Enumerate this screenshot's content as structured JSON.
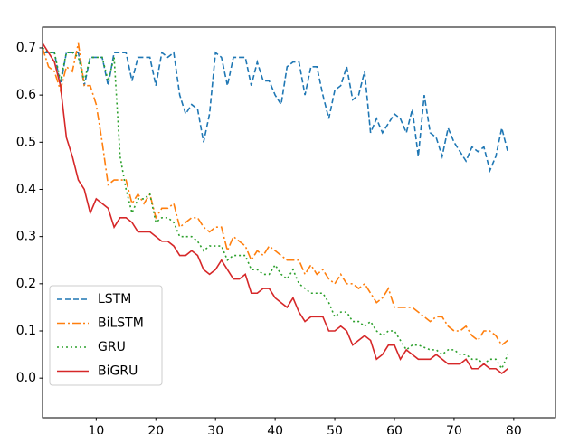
{
  "chart_data": {
    "type": "line",
    "x": [
      1,
      2,
      3,
      4,
      5,
      6,
      7,
      8,
      9,
      10,
      11,
      12,
      13,
      14,
      15,
      16,
      17,
      18,
      19,
      20,
      21,
      22,
      23,
      24,
      25,
      26,
      27,
      28,
      29,
      30,
      31,
      32,
      33,
      34,
      35,
      36,
      37,
      38,
      39,
      40,
      41,
      42,
      43,
      44,
      45,
      46,
      47,
      48,
      49,
      50,
      51,
      52,
      53,
      54,
      55,
      56,
      57,
      58,
      59,
      60,
      61,
      62,
      63,
      64,
      65,
      66,
      67,
      68,
      69,
      70,
      71,
      72,
      73,
      74,
      75,
      76,
      77,
      78,
      79
    ],
    "series": [
      {
        "name": "LSTM",
        "color": "#1f77b4",
        "linestyle": "dashed",
        "values": [
          0.69,
          0.69,
          0.69,
          0.62,
          0.69,
          0.69,
          0.69,
          0.62,
          0.68,
          0.68,
          0.68,
          0.62,
          0.69,
          0.69,
          0.69,
          0.63,
          0.68,
          0.68,
          0.68,
          0.62,
          0.69,
          0.68,
          0.69,
          0.6,
          0.56,
          0.58,
          0.57,
          0.5,
          0.56,
          0.69,
          0.68,
          0.62,
          0.68,
          0.68,
          0.68,
          0.62,
          0.67,
          0.63,
          0.63,
          0.6,
          0.58,
          0.66,
          0.67,
          0.67,
          0.6,
          0.66,
          0.66,
          0.6,
          0.55,
          0.61,
          0.62,
          0.66,
          0.59,
          0.6,
          0.65,
          0.52,
          0.55,
          0.52,
          0.54,
          0.56,
          0.55,
          0.52,
          0.57,
          0.47,
          0.6,
          0.52,
          0.51,
          0.47,
          0.53,
          0.5,
          0.48,
          0.46,
          0.49,
          0.48,
          0.49,
          0.44,
          0.47,
          0.53,
          0.48
        ]
      },
      {
        "name": "BiLSTM",
        "color": "#ff7f0e",
        "linestyle": "dashdot",
        "values": [
          0.7,
          0.66,
          0.65,
          0.61,
          0.66,
          0.65,
          0.71,
          0.62,
          0.62,
          0.58,
          0.5,
          0.41,
          0.42,
          0.42,
          0.42,
          0.37,
          0.39,
          0.37,
          0.39,
          0.34,
          0.36,
          0.36,
          0.37,
          0.32,
          0.33,
          0.34,
          0.34,
          0.32,
          0.31,
          0.32,
          0.32,
          0.27,
          0.3,
          0.29,
          0.28,
          0.25,
          0.27,
          0.26,
          0.28,
          0.27,
          0.26,
          0.25,
          0.25,
          0.25,
          0.22,
          0.24,
          0.22,
          0.23,
          0.21,
          0.2,
          0.22,
          0.2,
          0.2,
          0.19,
          0.2,
          0.18,
          0.16,
          0.17,
          0.19,
          0.15,
          0.15,
          0.15,
          0.15,
          0.14,
          0.13,
          0.12,
          0.13,
          0.13,
          0.11,
          0.1,
          0.1,
          0.11,
          0.09,
          0.08,
          0.1,
          0.1,
          0.09,
          0.07,
          0.08
        ]
      },
      {
        "name": "GRU",
        "color": "#2ca02c",
        "linestyle": "dotted",
        "values": [
          0.7,
          0.69,
          0.69,
          0.63,
          0.69,
          0.69,
          0.68,
          0.63,
          0.68,
          0.68,
          0.68,
          0.63,
          0.68,
          0.47,
          0.4,
          0.35,
          0.38,
          0.38,
          0.39,
          0.33,
          0.34,
          0.34,
          0.33,
          0.3,
          0.3,
          0.3,
          0.29,
          0.27,
          0.28,
          0.28,
          0.28,
          0.25,
          0.26,
          0.26,
          0.26,
          0.23,
          0.23,
          0.22,
          0.22,
          0.24,
          0.22,
          0.21,
          0.23,
          0.2,
          0.19,
          0.18,
          0.18,
          0.18,
          0.16,
          0.13,
          0.14,
          0.14,
          0.12,
          0.12,
          0.11,
          0.12,
          0.1,
          0.09,
          0.1,
          0.1,
          0.08,
          0.06,
          0.07,
          0.07,
          0.065,
          0.06,
          0.06,
          0.05,
          0.06,
          0.06,
          0.05,
          0.05,
          0.04,
          0.04,
          0.03,
          0.04,
          0.04,
          0.02,
          0.05
        ]
      },
      {
        "name": "BiGRU",
        "color": "#d62728",
        "linestyle": "solid",
        "values": [
          0.71,
          0.69,
          0.67,
          0.62,
          0.51,
          0.47,
          0.42,
          0.4,
          0.35,
          0.38,
          0.37,
          0.36,
          0.32,
          0.34,
          0.34,
          0.33,
          0.31,
          0.31,
          0.31,
          0.3,
          0.29,
          0.29,
          0.28,
          0.26,
          0.26,
          0.27,
          0.26,
          0.23,
          0.22,
          0.23,
          0.25,
          0.23,
          0.21,
          0.21,
          0.22,
          0.18,
          0.18,
          0.19,
          0.19,
          0.17,
          0.16,
          0.15,
          0.17,
          0.14,
          0.12,
          0.13,
          0.13,
          0.13,
          0.1,
          0.1,
          0.11,
          0.1,
          0.07,
          0.08,
          0.09,
          0.08,
          0.04,
          0.05,
          0.07,
          0.07,
          0.04,
          0.06,
          0.05,
          0.04,
          0.04,
          0.04,
          0.05,
          0.04,
          0.03,
          0.03,
          0.03,
          0.04,
          0.02,
          0.02,
          0.03,
          0.02,
          0.02,
          0.01,
          0.02
        ]
      }
    ],
    "xlim": [
      1,
      87
    ],
    "xticks": [
      10,
      20,
      30,
      40,
      50,
      60,
      70,
      80
    ],
    "ylim": [
      -0.084,
      0.744
    ],
    "yticks": [
      {
        "value": 0,
        "label": "0.0"
      },
      0.1,
      0.2,
      0.3,
      0.4,
      0.5,
      0.6,
      0.7
    ],
    "legend": "lower left"
  }
}
